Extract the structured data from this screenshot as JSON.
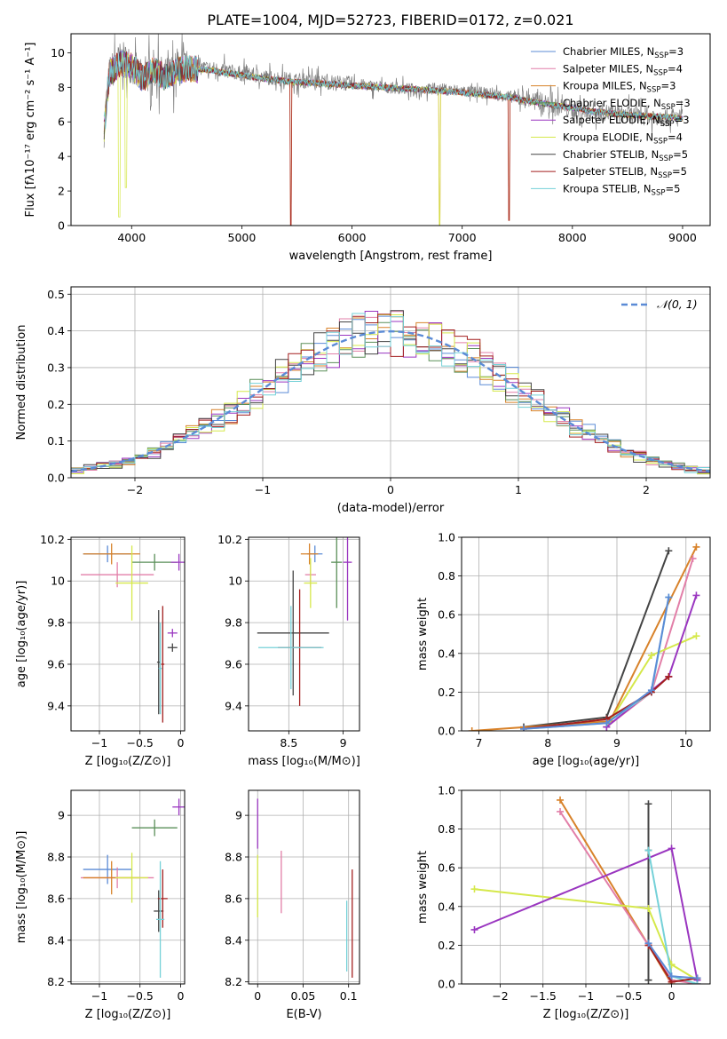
{
  "title": "PLATE=1004, MJD=52723, FIBERID=0172, z=0.021",
  "chart_data": [
    {
      "id": "spectrum",
      "type": "line",
      "xlabel": "wavelength [Angstrom, rest frame]",
      "ylabel": "Flux [fλ10⁻¹⁷ erg cm⁻² s⁻¹ A⁻¹]",
      "xlim": [
        3450,
        9250
      ],
      "ylim": [
        0,
        11.1
      ],
      "xticks": [
        4000,
        5000,
        6000,
        7000,
        8000,
        9000
      ],
      "yticks": [
        0,
        2,
        4,
        6,
        8,
        10
      ],
      "legend_position": "top-right",
      "data_series": {
        "name": "",
        "color": "#7f7f7f",
        "x": [
          3750,
          3800,
          3900,
          4000,
          4100,
          4200,
          4300,
          4400,
          4500,
          4700,
          5000,
          5200,
          5500,
          5800,
          6000,
          6300,
          6500,
          6800,
          7000,
          7300,
          7600,
          7800,
          8000,
          8200,
          8500,
          8800,
          9000
        ],
        "y": [
          5.6,
          8.8,
          9.6,
          9.3,
          8.4,
          9.1,
          8.6,
          9.0,
          9.2,
          9.1,
          8.8,
          8.6,
          8.4,
          8.3,
          8.2,
          8.0,
          7.9,
          7.9,
          7.8,
          7.6,
          7.3,
          7.0,
          6.7,
          6.6,
          6.4,
          6.3,
          6.2
        ]
      },
      "series": [
        {
          "name": "Chabrier MILES, N_SSP=3",
          "color": "#5b8bd6"
        },
        {
          "name": "Salpeter MILES, N_SSP=4",
          "color": "#e27fa8"
        },
        {
          "name": "Kroupa MILES, N_SSP=3",
          "color": "#d8822a"
        },
        {
          "name": "Chabrier ELODIE, N_SSP=3",
          "color": "#5a8f58"
        },
        {
          "name": "Salpeter ELODIE, N_SSP=3",
          "color": "#9a36c0"
        },
        {
          "name": "Kroupa ELODIE, N_SSP=4",
          "color": "#d5e84a"
        },
        {
          "name": "Chabrier STELIB, N_SSP=5",
          "color": "#444444"
        },
        {
          "name": "Salpeter STELIB, N_SSP=5",
          "color": "#a31f1f"
        },
        {
          "name": "Kroupa STELIB, N_SSP=5",
          "color": "#75d1d8"
        }
      ],
      "model_x": [
        3750,
        3800,
        3900,
        4000,
        4100,
        4200,
        4300,
        4400,
        4500,
        4700,
        5000,
        5200,
        5500,
        5800,
        6000,
        6300,
        6500,
        6800,
        7000,
        7300,
        7450,
        7600,
        7800,
        8000,
        8200,
        8500,
        8800,
        9000
      ],
      "model_y": [
        5.6,
        8.8,
        9.4,
        9.2,
        8.5,
        9.0,
        8.6,
        8.9,
        9.1,
        9.0,
        8.7,
        8.5,
        8.3,
        8.2,
        8.1,
        8.0,
        7.9,
        7.8,
        7.7,
        7.5,
        7.4,
        7.2,
        7.0,
        6.8,
        6.6,
        6.4,
        6.3,
        6.2
      ]
    },
    {
      "id": "residuals",
      "type": "line",
      "xlabel": "(data-model)/error",
      "ylabel": "Normed distribution",
      "xlim": [
        -2.5,
        2.5
      ],
      "ylim": [
        0,
        0.52
      ],
      "xticks": [
        -2,
        -1,
        0,
        1,
        2
      ],
      "yticks": [
        0.0,
        0.1,
        0.2,
        0.3,
        0.4,
        0.5
      ],
      "grid": true,
      "legend_position": "top-right",
      "normal_curve": {
        "name": "N(0,1)",
        "color": "#5b8bd6",
        "mu": 0,
        "sigma": 1
      },
      "bin_width": 0.1,
      "bin_start": -2.5
    },
    {
      "id": "age-vs-Z",
      "type": "errorbar",
      "xlabel": "Z [log₁₀(Z/Z⊙)]",
      "ylabel": "age  [log₁₀(age/yr)]",
      "xlim": [
        -1.35,
        0.05
      ],
      "ylim": [
        9.28,
        10.21
      ],
      "xticks": [
        -1.0,
        -0.5,
        0.0
      ],
      "yticks": [
        9.4,
        9.6,
        9.8,
        10.0,
        10.2
      ],
      "grid": true,
      "points": [
        {
          "series": 0,
          "x": -0.9,
          "y": 10.13,
          "xerr": 0.3,
          "yerr": 0.04
        },
        {
          "series": 1,
          "x": -0.78,
          "y": 10.03,
          "xerr": 0.45,
          "yerr": 0.06
        },
        {
          "series": 2,
          "x": -0.85,
          "y": 10.13,
          "xerr": 0.35,
          "yerr": 0.05
        },
        {
          "series": 3,
          "x": -0.32,
          "y": 10.09,
          "xerr": 0.28,
          "yerr": 0.04
        },
        {
          "series": 4,
          "x": -0.02,
          "y": 10.09,
          "xerr": 0.1,
          "yerr": 0.04
        },
        {
          "series": 5,
          "x": -0.6,
          "y": 9.99,
          "xerr": 0.2,
          "yerr": 0.18
        },
        {
          "series": 6,
          "x": -0.27,
          "y": 9.61,
          "xerr": 0.02,
          "yerr": 0.25
        },
        {
          "series": 7,
          "x": -0.22,
          "y": 9.6,
          "xerr": 0.02,
          "yerr": 0.28
        },
        {
          "series": 8,
          "x": -0.25,
          "y": 9.58,
          "xerr": 0.02,
          "yerr": 0.22
        },
        {
          "series": 4,
          "x": -0.1,
          "y": 9.75,
          "xerr": 0.06,
          "yerr": 0.02
        },
        {
          "series": 6,
          "x": -0.1,
          "y": 9.68,
          "xerr": 0.06,
          "yerr": 0.02
        }
      ]
    },
    {
      "id": "age-vs-mass",
      "type": "errorbar",
      "xlabel": "mass [log₁₀(M/M⊙)]",
      "ylabel": "",
      "xlim": [
        8.13,
        9.15
      ],
      "ylim": [
        9.28,
        10.21
      ],
      "xticks": [
        8.5,
        9.0
      ],
      "yticks": [
        9.4,
        9.6,
        9.8,
        10.0,
        10.2
      ],
      "grid": true,
      "points": [
        {
          "series": 0,
          "x": 8.74,
          "y": 10.13,
          "xerr": 0.07,
          "yerr": 0.04
        },
        {
          "series": 1,
          "x": 8.7,
          "y": 10.03,
          "xerr": 0.05,
          "yerr": 0.06
        },
        {
          "series": 2,
          "x": 8.69,
          "y": 10.13,
          "xerr": 0.08,
          "yerr": 0.05
        },
        {
          "series": 3,
          "x": 8.94,
          "y": 10.09,
          "xerr": 0.05,
          "yerr": 0.22
        },
        {
          "series": 4,
          "x": 9.04,
          "y": 10.09,
          "xerr": 0.04,
          "yerr": 0.28
        },
        {
          "series": 5,
          "x": 8.7,
          "y": 9.99,
          "xerr": 0.06,
          "yerr": 0.12
        },
        {
          "series": 6,
          "x": 8.54,
          "y": 9.75,
          "xerr": 0.33,
          "yerr": 0.3
        },
        {
          "series": 7,
          "x": 8.6,
          "y": 9.68,
          "xerr": 0.2,
          "yerr": 0.28
        },
        {
          "series": 8,
          "x": 8.52,
          "y": 9.68,
          "xerr": 0.3,
          "yerr": 0.2
        }
      ]
    },
    {
      "id": "mass-weight-vs-age",
      "type": "line",
      "xlabel": "age  [log₁₀(age/yr)]",
      "ylabel": "mass weight",
      "xlim": [
        6.75,
        10.35
      ],
      "ylim": [
        0,
        1.0
      ],
      "xticks": [
        7,
        8,
        9,
        10
      ],
      "yticks": [
        0.0,
        0.2,
        0.4,
        0.6,
        0.8,
        1.0
      ],
      "grid": true,
      "lines": [
        {
          "series": 6,
          "x": [
            7.65,
            8.85,
            9.75
          ],
          "y": [
            0.02,
            0.07,
            0.93
          ]
        },
        {
          "series": 2,
          "x": [
            6.9,
            8.9,
            10.15
          ],
          "y": [
            0.0,
            0.05,
            0.95
          ]
        },
        {
          "series": 1,
          "x": [
            8.85,
            9.5,
            10.1
          ],
          "y": [
            0.02,
            0.2,
            0.89
          ]
        },
        {
          "series": 5,
          "x": [
            8.85,
            9.5,
            10.15
          ],
          "y": [
            0.02,
            0.39,
            0.49
          ]
        },
        {
          "series": 4,
          "x": [
            8.85,
            9.75,
            10.15
          ],
          "y": [
            0.02,
            0.28,
            0.7
          ]
        },
        {
          "series": 8,
          "x": [
            7.65,
            8.85,
            9.5,
            9.75
          ],
          "y": [
            0.01,
            0.04,
            0.2,
            0.69
          ]
        },
        {
          "series": 7,
          "x": [
            7.65,
            8.85,
            9.5,
            9.75
          ],
          "y": [
            0.01,
            0.06,
            0.2,
            0.28
          ]
        },
        {
          "series": 0,
          "x": [
            7.65,
            8.85,
            9.5,
            9.75
          ],
          "y": [
            0.01,
            0.04,
            0.21,
            0.69
          ]
        }
      ]
    },
    {
      "id": "mass-vs-Z",
      "type": "errorbar",
      "xlabel": "Z [log₁₀(Z/Z⊙)]",
      "ylabel": "mass [log₁₀(M/M⊙)]",
      "xlim": [
        -1.35,
        0.05
      ],
      "ylim": [
        8.19,
        9.12
      ],
      "xticks": [
        -1.0,
        -0.5,
        0.0
      ],
      "yticks": [
        8.2,
        8.4,
        8.6,
        8.8,
        9.0
      ],
      "grid": true,
      "points": [
        {
          "series": 0,
          "x": -0.9,
          "y": 8.74,
          "xerr": 0.3,
          "yerr": 0.07
        },
        {
          "series": 1,
          "x": -0.78,
          "y": 8.7,
          "xerr": 0.45,
          "yerr": 0.05
        },
        {
          "series": 2,
          "x": -0.85,
          "y": 8.7,
          "xerr": 0.35,
          "yerr": 0.08
        },
        {
          "series": 3,
          "x": -0.32,
          "y": 8.94,
          "xerr": 0.28,
          "yerr": 0.04
        },
        {
          "series": 4,
          "x": -0.02,
          "y": 9.04,
          "xerr": 0.08,
          "yerr": 0.04
        },
        {
          "series": 5,
          "x": -0.6,
          "y": 8.7,
          "xerr": 0.2,
          "yerr": 0.12
        },
        {
          "series": 6,
          "x": -0.27,
          "y": 8.54,
          "xerr": 0.06,
          "yerr": 0.1
        },
        {
          "series": 7,
          "x": -0.22,
          "y": 8.6,
          "xerr": 0.06,
          "yerr": 0.14
        },
        {
          "series": 8,
          "x": -0.25,
          "y": 8.5,
          "xerr": 0.05,
          "yerr": 0.28
        }
      ]
    },
    {
      "id": "mass-vs-EBV",
      "type": "errorbar",
      "xlabel": "E(B-V)",
      "ylabel": "",
      "xlim": [
        -0.01,
        0.112
      ],
      "ylim": [
        8.19,
        9.12
      ],
      "xticks": [
        0.0,
        0.05,
        0.1
      ],
      "yticks": [
        8.2,
        8.4,
        8.6,
        8.8,
        9.0
      ],
      "grid": true,
      "points": [
        {
          "series": 4,
          "x": 0.0,
          "y": 8.96,
          "xerr": 0,
          "yerr": 0.12
        },
        {
          "series": 5,
          "x": 0.0,
          "y": 8.66,
          "xerr": 0,
          "yerr": 0.15
        },
        {
          "series": 1,
          "x": 0.026,
          "y": 8.68,
          "xerr": 0,
          "yerr": 0.15
        },
        {
          "series": 8,
          "x": 0.098,
          "y": 8.42,
          "xerr": 0,
          "yerr": 0.17
        },
        {
          "series": 7,
          "x": 0.104,
          "y": 8.48,
          "xerr": 0,
          "yerr": 0.26
        }
      ]
    },
    {
      "id": "mass-weight-vs-Z",
      "type": "line",
      "xlabel": "Z [log₁₀(Z/Z⊙)]",
      "ylabel": "mass weight",
      "xlim": [
        -2.45,
        0.45
      ],
      "ylim": [
        0,
        1.0
      ],
      "xticks": [
        -2.0,
        -1.5,
        -1.0,
        -0.5,
        0.0
      ],
      "yticks": [
        0.0,
        0.2,
        0.4,
        0.6,
        0.8,
        1.0
      ],
      "grid": true,
      "lines": [
        {
          "series": 6,
          "x": [
            -0.27,
            -0.27,
            -0.27
          ],
          "y": [
            0.02,
            0.69,
            0.93
          ]
        },
        {
          "series": 2,
          "x": [
            -1.3,
            -0.27,
            0.0
          ],
          "y": [
            0.95,
            0.2,
            0.0
          ]
        },
        {
          "series": 1,
          "x": [
            -1.3,
            -0.27,
            0.0,
            0.3
          ],
          "y": [
            0.89,
            0.2,
            0.02,
            0.0
          ]
        },
        {
          "series": 5,
          "x": [
            -2.3,
            -0.27,
            0.0,
            0.3
          ],
          "y": [
            0.49,
            0.39,
            0.1,
            0.02
          ]
        },
        {
          "series": 4,
          "x": [
            -2.3,
            0.0,
            0.3
          ],
          "y": [
            0.28,
            0.7,
            0.02
          ]
        },
        {
          "series": 8,
          "x": [
            -0.27,
            0.0,
            0.3
          ],
          "y": [
            0.69,
            0.04,
            0.0
          ]
        },
        {
          "series": 7,
          "x": [
            -0.27,
            0.0,
            0.3
          ],
          "y": [
            0.2,
            0.01,
            0.03
          ]
        },
        {
          "series": 0,
          "x": [
            -0.27,
            0.0,
            0.3
          ],
          "y": [
            0.21,
            0.04,
            0.03
          ]
        }
      ]
    }
  ]
}
